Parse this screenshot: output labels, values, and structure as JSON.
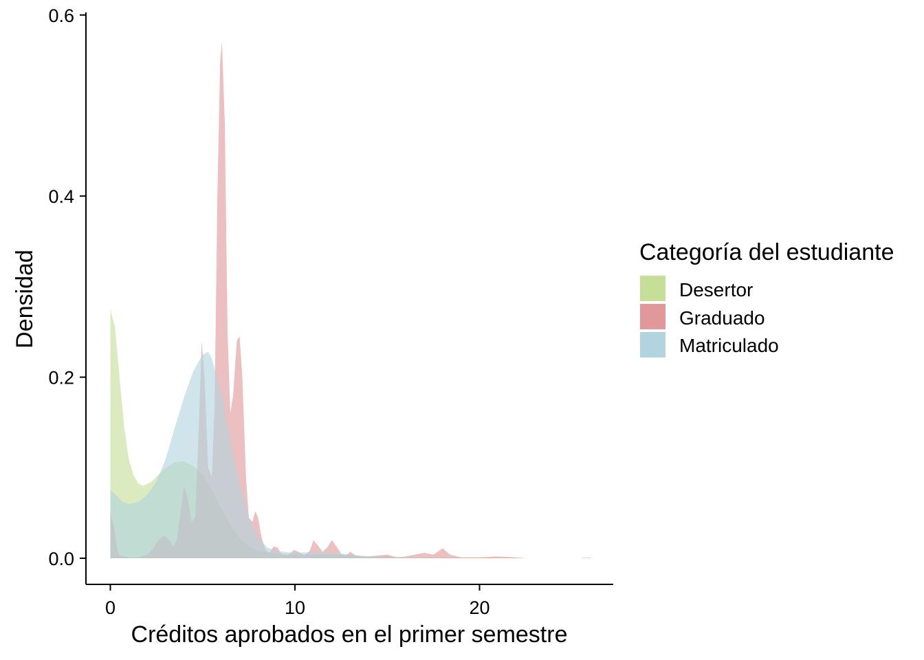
{
  "chart_data": {
    "type": "area",
    "xlabel": "Créditos aprobados en el primer semestre",
    "ylabel": "Densidad",
    "xlim": [
      -1.3,
      27
    ],
    "ylim": [
      -0.05,
      0.6
    ],
    "xticks": [
      0,
      10,
      20
    ],
    "xtick_labels": [
      "0",
      "10",
      "20"
    ],
    "yticks": [
      0.0,
      0.2,
      0.4,
      0.6
    ],
    "ytick_labels": [
      "0.0",
      "0.2",
      "0.4",
      "0.6"
    ],
    "grid": false,
    "legend": {
      "title": "Categoría del estudiante",
      "position": "right",
      "items": [
        "Desertor",
        "Graduado",
        "Matriculado"
      ]
    },
    "series": [
      {
        "name": "Desertor",
        "color": "#C5DE98",
        "points": [
          [
            0,
            0.275
          ],
          [
            0.25,
            0.255
          ],
          [
            0.5,
            0.2
          ],
          [
            0.75,
            0.145
          ],
          [
            1,
            0.11
          ],
          [
            1.25,
            0.092
          ],
          [
            1.5,
            0.083
          ],
          [
            1.75,
            0.08
          ],
          [
            2,
            0.082
          ],
          [
            2.25,
            0.085
          ],
          [
            2.5,
            0.09
          ],
          [
            3,
            0.1
          ],
          [
            3.5,
            0.106
          ],
          [
            4,
            0.107
          ],
          [
            4.5,
            0.102
          ],
          [
            5,
            0.092
          ],
          [
            5.5,
            0.075
          ],
          [
            6,
            0.055
          ],
          [
            6.5,
            0.037
          ],
          [
            7,
            0.022
          ],
          [
            7.5,
            0.013
          ],
          [
            8,
            0.008
          ],
          [
            9,
            0.005
          ],
          [
            10,
            0.005
          ],
          [
            11,
            0.004
          ],
          [
            12,
            0.004
          ],
          [
            13,
            0.003
          ],
          [
            14,
            0.002
          ],
          [
            15,
            0.002
          ],
          [
            16,
            0.001
          ],
          [
            18,
            0.001
          ],
          [
            20,
            0.001
          ],
          [
            22,
            0.0005
          ],
          [
            22.5,
            0
          ]
        ]
      },
      {
        "name": "Graduado",
        "color": "#E0989A",
        "points": [
          [
            0,
            0.05
          ],
          [
            0.2,
            0.035
          ],
          [
            0.35,
            0.012
          ],
          [
            0.5,
            0.003
          ],
          [
            1,
            0.001
          ],
          [
            1.5,
            0.001
          ],
          [
            2,
            0.004
          ],
          [
            2.3,
            0.01
          ],
          [
            2.6,
            0.02
          ],
          [
            2.9,
            0.025
          ],
          [
            3.2,
            0.02
          ],
          [
            3.4,
            0.013
          ],
          [
            3.6,
            0.02
          ],
          [
            3.8,
            0.05
          ],
          [
            4,
            0.08
          ],
          [
            4.2,
            0.065
          ],
          [
            4.4,
            0.04
          ],
          [
            4.6,
            0.045
          ],
          [
            4.8,
            0.15
          ],
          [
            4.95,
            0.24
          ],
          [
            5.1,
            0.2
          ],
          [
            5.3,
            0.1
          ],
          [
            5.5,
            0.09
          ],
          [
            5.65,
            0.17
          ],
          [
            5.8,
            0.4
          ],
          [
            5.95,
            0.55
          ],
          [
            6.05,
            0.57
          ],
          [
            6.2,
            0.48
          ],
          [
            6.35,
            0.25
          ],
          [
            6.5,
            0.16
          ],
          [
            6.65,
            0.18
          ],
          [
            6.85,
            0.24
          ],
          [
            7,
            0.245
          ],
          [
            7.15,
            0.2
          ],
          [
            7.35,
            0.09
          ],
          [
            7.5,
            0.045
          ],
          [
            7.7,
            0.04
          ],
          [
            7.85,
            0.052
          ],
          [
            8,
            0.045
          ],
          [
            8.2,
            0.022
          ],
          [
            8.4,
            0.01
          ],
          [
            8.6,
            0.006
          ],
          [
            8.85,
            0.013
          ],
          [
            9.05,
            0.012
          ],
          [
            9.3,
            0.004
          ],
          [
            9.6,
            0.003
          ],
          [
            9.95,
            0.009
          ],
          [
            10.2,
            0.007
          ],
          [
            10.5,
            0.003
          ],
          [
            10.8,
            0.008
          ],
          [
            11,
            0.02
          ],
          [
            11.25,
            0.014
          ],
          [
            11.5,
            0.007
          ],
          [
            11.75,
            0.012
          ],
          [
            12,
            0.02
          ],
          [
            12.25,
            0.013
          ],
          [
            12.5,
            0.005
          ],
          [
            12.75,
            0.003
          ],
          [
            13,
            0.007
          ],
          [
            13.3,
            0.003
          ],
          [
            13.6,
            0.002
          ],
          [
            14,
            0.002
          ],
          [
            15,
            0.004
          ],
          [
            15.5,
            0.001
          ],
          [
            16,
            0.002
          ],
          [
            17,
            0.006
          ],
          [
            17.5,
            0.004
          ],
          [
            18,
            0.011
          ],
          [
            18.4,
            0.004
          ],
          [
            19,
            0.001
          ],
          [
            20,
            0.001
          ],
          [
            21,
            0.002
          ],
          [
            22,
            0.001
          ],
          [
            22.5,
            0
          ]
        ]
      },
      {
        "name": "Matriculado",
        "color": "#B2D4DE",
        "points": [
          [
            0,
            0.075
          ],
          [
            0.3,
            0.07
          ],
          [
            0.6,
            0.063
          ],
          [
            1,
            0.06
          ],
          [
            1.5,
            0.062
          ],
          [
            2,
            0.07
          ],
          [
            2.5,
            0.085
          ],
          [
            3,
            0.11
          ],
          [
            3.5,
            0.145
          ],
          [
            4,
            0.178
          ],
          [
            4.5,
            0.207
          ],
          [
            5,
            0.225
          ],
          [
            5.3,
            0.228
          ],
          [
            5.5,
            0.22
          ],
          [
            6,
            0.185
          ],
          [
            6.5,
            0.13
          ],
          [
            7,
            0.082
          ],
          [
            7.5,
            0.045
          ],
          [
            8,
            0.023
          ],
          [
            8.5,
            0.012
          ],
          [
            9,
            0.008
          ],
          [
            10,
            0.006
          ],
          [
            11,
            0.007
          ],
          [
            12,
            0.006
          ],
          [
            13,
            0.004
          ],
          [
            14,
            0.002
          ],
          [
            15,
            0.001
          ],
          [
            17,
            0.0005
          ],
          [
            19,
            0
          ],
          [
            25.5,
            0
          ],
          [
            25.6,
            0.001
          ],
          [
            26,
            0.001
          ],
          [
            26.1,
            0
          ]
        ]
      }
    ]
  }
}
